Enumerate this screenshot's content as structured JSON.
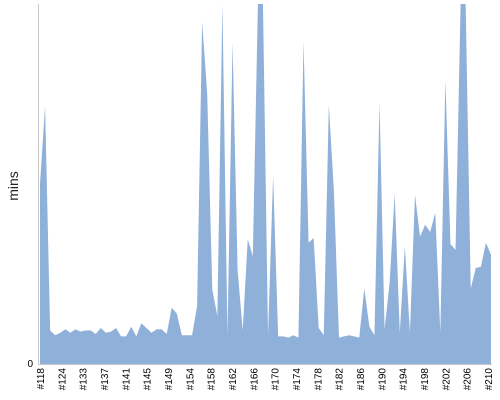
{
  "chart_data": {
    "type": "area",
    "ylabel": "mins",
    "xlabel": "",
    "title": "",
    "grid": false,
    "legend": "none",
    "ylim": [
      0,
      300
    ],
    "y_ticks": [
      0
    ],
    "x_tick_labels": [
      "#118",
      "#124",
      "#133",
      "#137",
      "#141",
      "#145",
      "#149",
      "#154",
      "#158",
      "#162",
      "#166",
      "#170",
      "#174",
      "#178",
      "#182",
      "#186",
      "#190",
      "#194",
      "#198",
      "#202",
      "#206",
      "#210"
    ],
    "fill_color": "#8fb0d9",
    "series": [
      {
        "values": [
          150,
          215,
          28,
          24,
          26,
          29,
          26,
          29,
          27,
          28,
          28,
          25,
          30,
          26,
          27,
          30,
          23,
          23,
          31,
          23,
          34,
          30,
          26,
          29,
          29,
          25,
          47,
          42,
          24,
          24,
          24,
          48,
          285,
          225,
          62,
          40,
          300,
          24,
          268,
          78,
          28,
          104,
          90,
          300,
          300,
          24,
          157,
          23,
          23,
          22,
          24,
          22,
          269,
          101,
          105,
          30,
          24,
          216,
          144,
          22,
          23,
          24,
          23,
          22,
          63,
          31,
          24,
          218,
          29,
          68,
          142,
          26,
          98,
          26,
          141,
          106,
          116,
          110,
          126,
          26,
          237,
          100,
          95,
          300,
          300,
          63,
          80,
          81,
          101,
          91
        ]
      }
    ]
  }
}
